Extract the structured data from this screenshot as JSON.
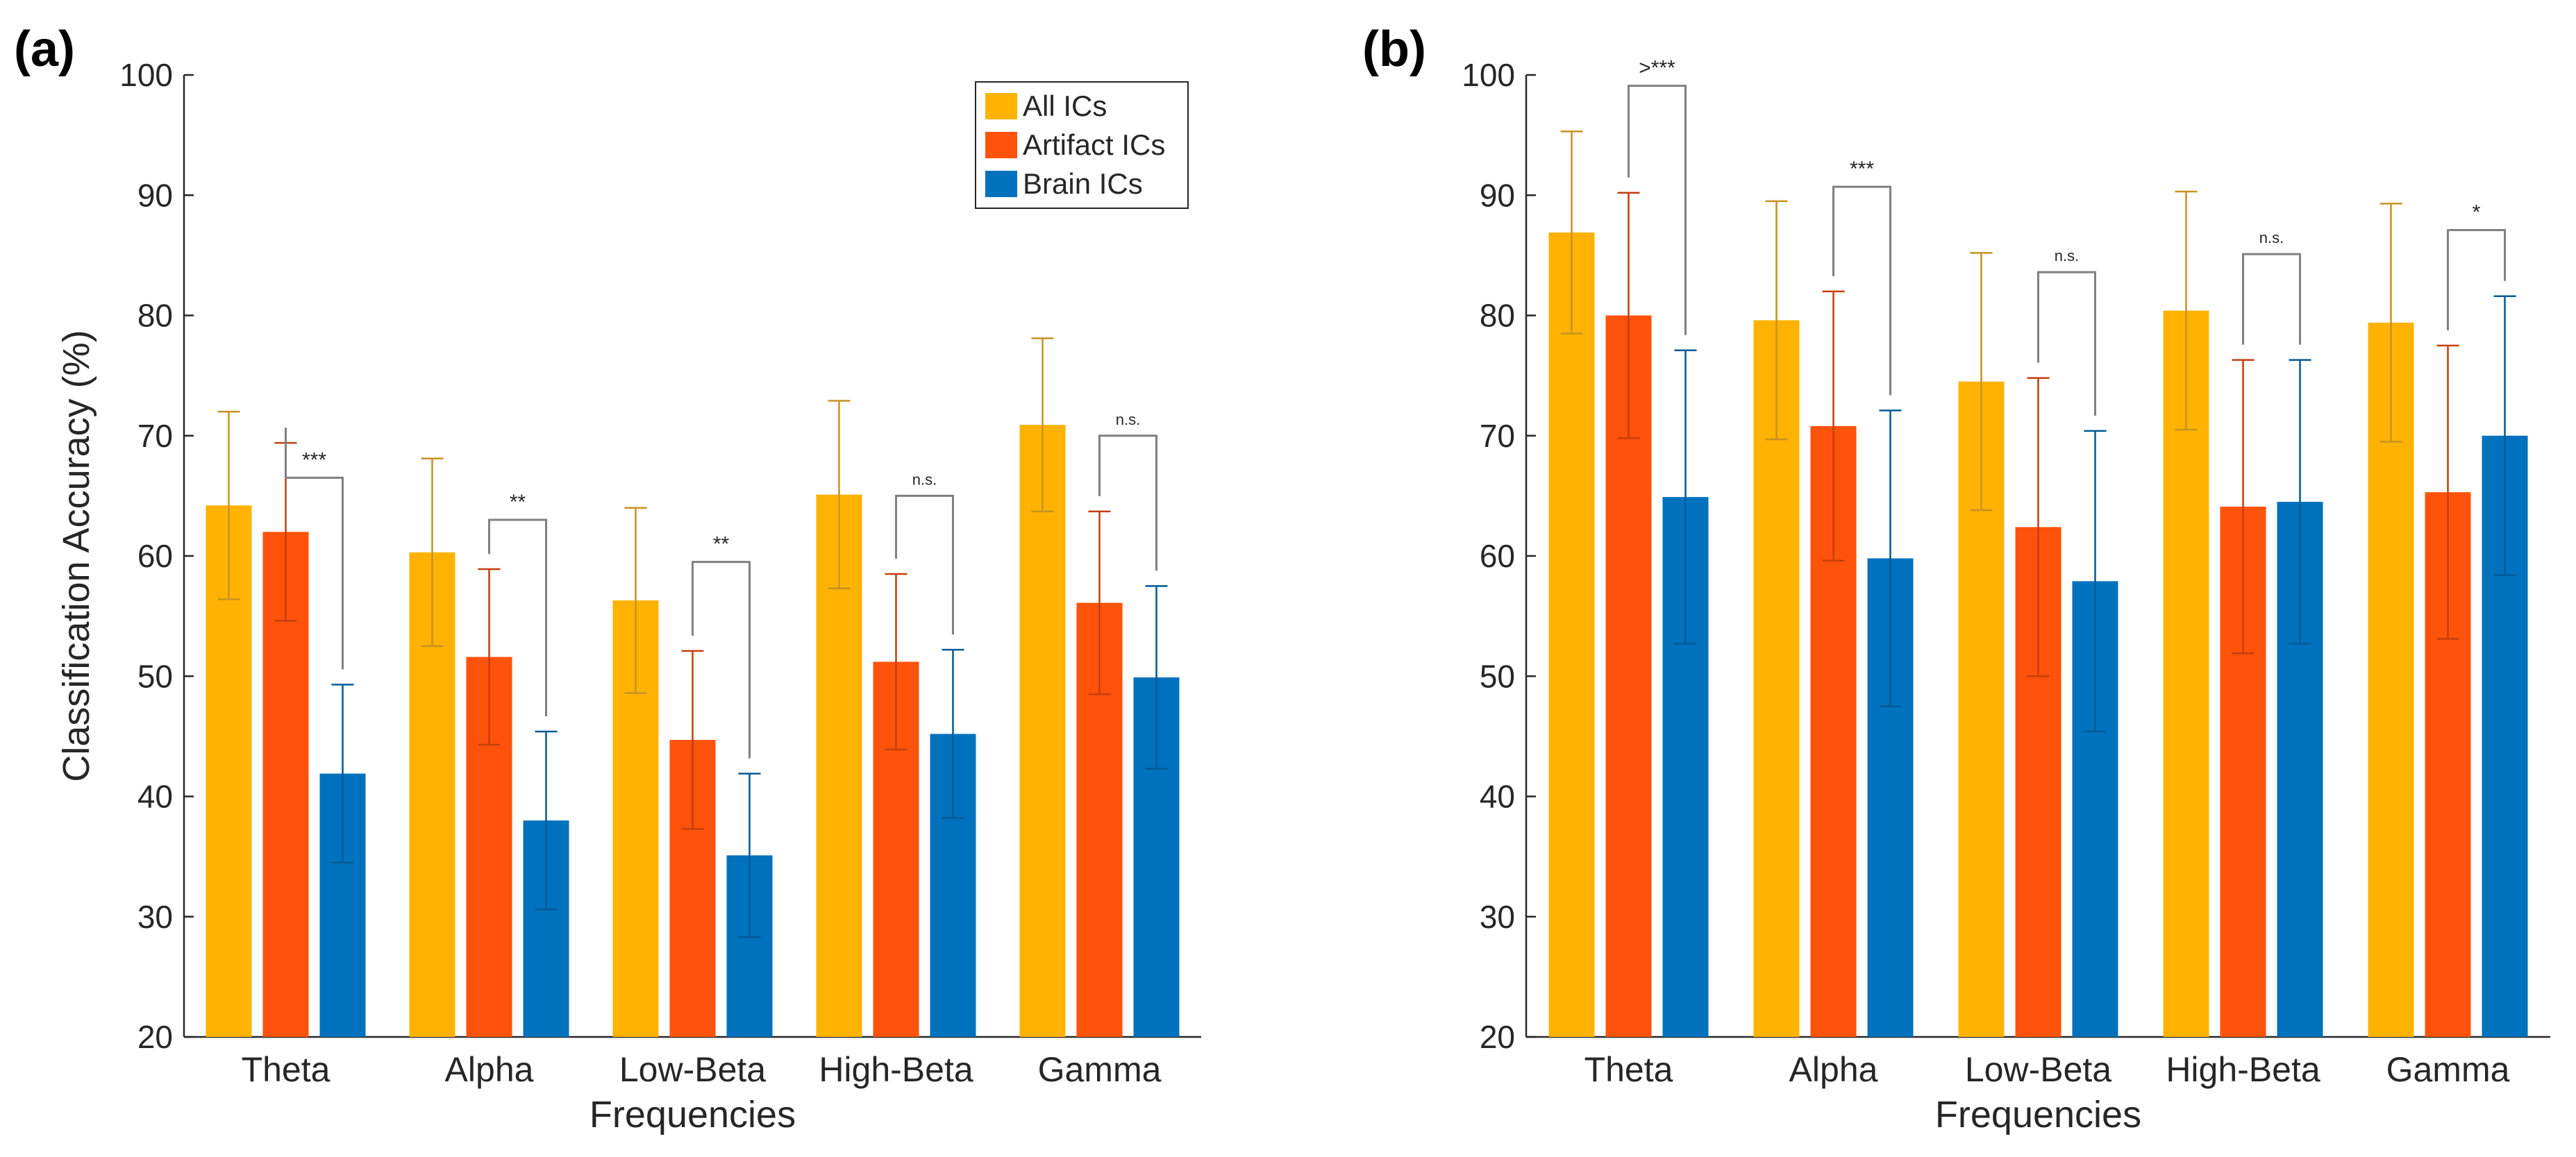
{
  "figure": {
    "colors": {
      "all": "#FFB300",
      "artifact": "#FF520A",
      "brain": "#0072BD",
      "all_err": "#C89122",
      "artifact_err": "#C43E0E",
      "brain_err": "#005A96",
      "axis": "#262626",
      "bracket": "#808080"
    }
  },
  "chart_data": [
    {
      "panel": "(a)",
      "type": "bar",
      "xlabel": "Frequencies",
      "ylabel": "Classification Accuracy (%)",
      "ylim": [
        20,
        100
      ],
      "yticks": [
        20,
        30,
        40,
        50,
        60,
        70,
        80,
        90,
        100
      ],
      "categories": [
        "Theta",
        "Alpha",
        "Low-Beta",
        "High-Beta",
        "Gamma"
      ],
      "legend": {
        "position": "top-right",
        "entries": [
          "All ICs",
          "Artifact ICs",
          "Brain ICs"
        ]
      },
      "series": [
        {
          "name": "All ICs",
          "values": [
            64.2,
            60.3,
            56.3,
            65.1,
            70.9
          ],
          "err": [
            7.8,
            7.8,
            7.7,
            7.8,
            7.2
          ]
        },
        {
          "name": "Artifact ICs",
          "values": [
            62.0,
            51.6,
            44.7,
            51.2,
            56.1
          ],
          "err": [
            7.4,
            7.3,
            7.4,
            7.3,
            7.6
          ]
        },
        {
          "name": "Brain ICs",
          "values": [
            41.9,
            38.0,
            35.1,
            45.2,
            49.9
          ],
          "err": [
            7.4,
            7.4,
            6.8,
            7.0,
            7.6
          ]
        }
      ],
      "significance": [
        {
          "category": "Theta",
          "label": "***",
          "top": 66.5
        },
        {
          "category": "Alpha",
          "label": "**",
          "top": 63.0
        },
        {
          "category": "Low-Beta",
          "label": "**",
          "top": 59.5
        },
        {
          "category": "High-Beta",
          "label": "n.s.",
          "top": 65.0
        },
        {
          "category": "Gamma",
          "label": "n.s.",
          "top": 70.0
        }
      ]
    },
    {
      "panel": "(b)",
      "type": "bar",
      "xlabel": "Frequencies",
      "ylabel": "",
      "ylim": [
        20,
        100
      ],
      "yticks": [
        20,
        30,
        40,
        50,
        60,
        70,
        80,
        90,
        100
      ],
      "categories": [
        "Theta",
        "Alpha",
        "Low-Beta",
        "High-Beta",
        "Gamma"
      ],
      "series": [
        {
          "name": "All ICs",
          "values": [
            86.9,
            79.6,
            74.5,
            80.4,
            79.4
          ],
          "err": [
            8.4,
            9.9,
            10.7,
            9.9,
            9.9
          ]
        },
        {
          "name": "Artifact ICs",
          "values": [
            80.0,
            70.8,
            62.4,
            64.1,
            65.3
          ],
          "err": [
            10.2,
            11.2,
            12.4,
            12.2,
            12.2
          ]
        },
        {
          "name": "Brain ICs",
          "values": [
            64.9,
            59.8,
            57.9,
            64.5,
            70.0
          ],
          "err": [
            12.2,
            12.3,
            12.5,
            11.8,
            11.6
          ]
        }
      ],
      "significance": [
        {
          "category": "Theta",
          "label": ">***",
          "top": 99.1
        },
        {
          "category": "Alpha",
          "label": "***",
          "top": 90.7
        },
        {
          "category": "Low-Beta",
          "label": "n.s.",
          "top": 83.6
        },
        {
          "category": "High-Beta",
          "label": "n.s.",
          "top": 85.1
        },
        {
          "category": "Gamma",
          "label": "*",
          "top": 87.1
        }
      ]
    }
  ]
}
